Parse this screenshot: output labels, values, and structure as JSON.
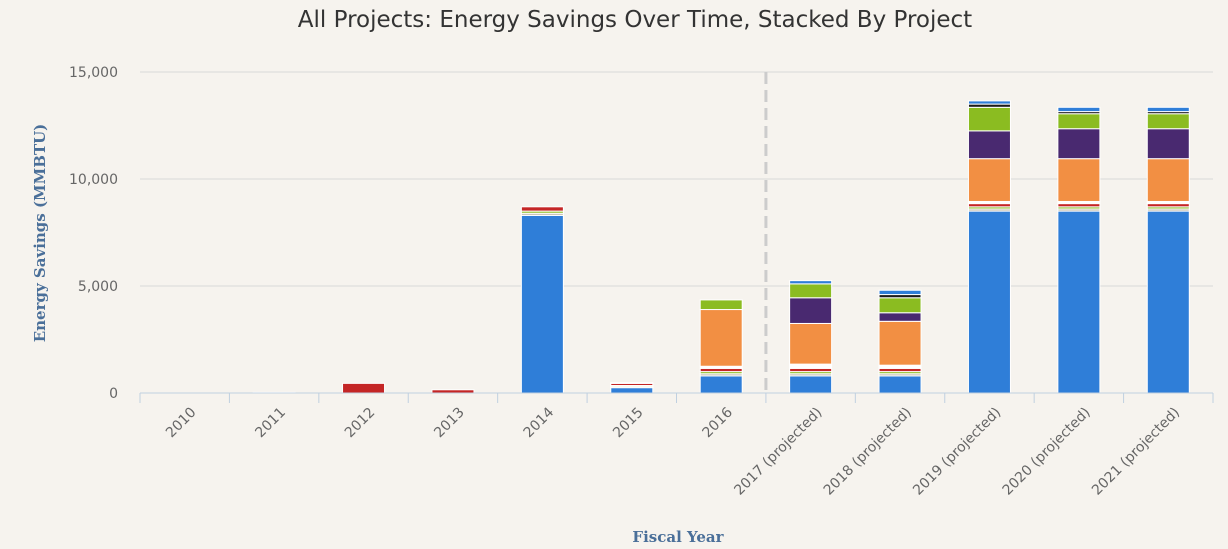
{
  "chart_data": {
    "type": "bar",
    "stacked": true,
    "title": "All Projects: Energy Savings Over Time, Stacked By Project",
    "xlabel": "Fiscal Year",
    "ylabel": "Energy Savings (MMBTU)",
    "ylim": [
      0,
      15000
    ],
    "yticks": [
      0,
      5000,
      10000,
      15000
    ],
    "ytick_labels": [
      "0",
      "5,000",
      "10,000",
      "15,000"
    ],
    "grid": true,
    "legend": "none",
    "projection_start_after": "2016",
    "categories": [
      "2010",
      "2011",
      "2012",
      "2013",
      "2014",
      "2015",
      "2016",
      "2017 (projected)",
      "2018 (projected)",
      "2019 (projected)",
      "2020 (projected)",
      "2021 (projected)"
    ],
    "series": [
      {
        "color": "#2f7ed8",
        "values": [
          0,
          0,
          0,
          0,
          8300,
          250,
          800,
          800,
          800,
          8500,
          8500,
          8500
        ]
      },
      {
        "color": "#c4bfae",
        "values": [
          0,
          0,
          0,
          0,
          100,
          50,
          100,
          100,
          100,
          100,
          100,
          100
        ]
      },
      {
        "color": "#8bbc21",
        "values": [
          0,
          0,
          0,
          0,
          100,
          50,
          100,
          100,
          100,
          100,
          100,
          100
        ]
      },
      {
        "color": "#c42525",
        "values": [
          0,
          30,
          450,
          150,
          200,
          100,
          150,
          150,
          150,
          150,
          150,
          150
        ]
      },
      {
        "color": "#ffffff",
        "values": [
          0,
          0,
          0,
          0,
          0,
          30,
          100,
          200,
          150,
          100,
          100,
          100
        ]
      },
      {
        "color": "#f28f43",
        "values": [
          0,
          0,
          0,
          0,
          0,
          0,
          2650,
          1900,
          2050,
          2000,
          2000,
          2000
        ]
      },
      {
        "color": "#492970",
        "values": [
          0,
          0,
          0,
          0,
          0,
          0,
          0,
          1200,
          400,
          1300,
          1400,
          1400
        ]
      },
      {
        "color": "#8bbc21",
        "values": [
          0,
          0,
          0,
          0,
          0,
          0,
          450,
          650,
          700,
          1100,
          700,
          700
        ]
      },
      {
        "color": "#1a1a1a",
        "values": [
          0,
          0,
          0,
          0,
          0,
          0,
          0,
          0,
          150,
          150,
          100,
          100
        ]
      },
      {
        "color": "#2f7ed8",
        "values": [
          0,
          0,
          0,
          0,
          0,
          0,
          0,
          150,
          200,
          150,
          200,
          200
        ]
      }
    ]
  }
}
